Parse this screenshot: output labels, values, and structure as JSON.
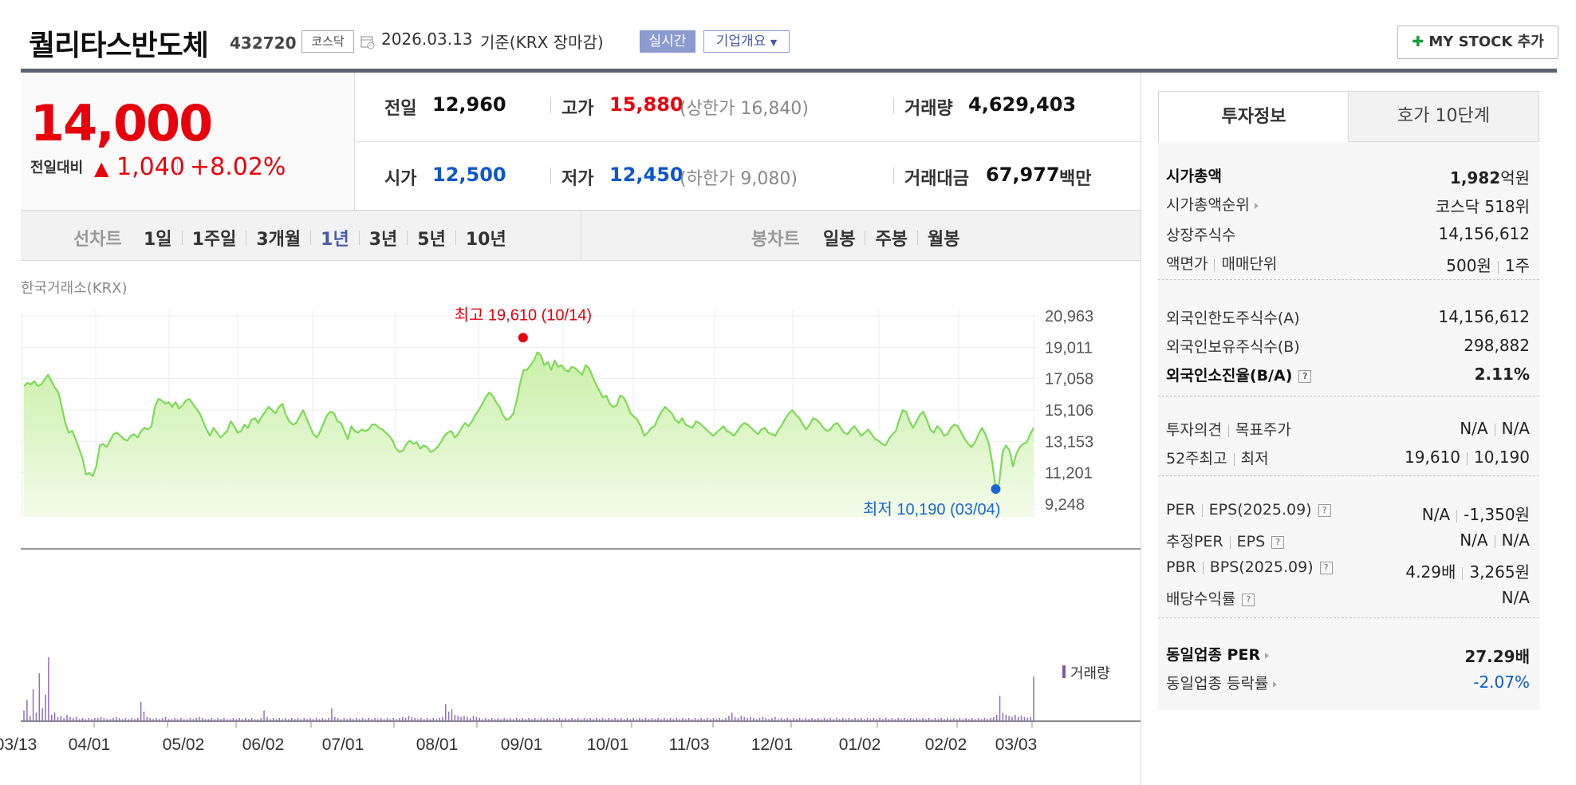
{
  "header": {
    "company_name": "퀄리타스반도체",
    "stock_code": "432720",
    "market": "코스닥",
    "date": "2026.03.13",
    "date_suffix": "기준(KRX 장마감)",
    "realtime_label": "실시간",
    "company_overview_label": "기업개요",
    "mystock_label": "MY STOCK 추가"
  },
  "price": {
    "current": "14,000",
    "change_label": "전일대비",
    "change_amount": "1,040",
    "change_rate": "+8.02%",
    "direction": "up"
  },
  "stats": {
    "prev_close_label": "전일",
    "prev_close": "12,960",
    "high_label": "고가",
    "high": "15,880",
    "upper_limit_label": "상한가",
    "upper_limit": "16,840",
    "volume_label": "거래량",
    "volume": "4,629,403",
    "open_label": "시가",
    "open": "12,500",
    "low_label": "저가",
    "low": "12,450",
    "lower_limit_label": "하한가",
    "lower_limit": "9,080",
    "trade_value_label": "거래대금",
    "trade_value": "67,977",
    "trade_value_unit": "백만"
  },
  "period_bar": {
    "line_chart_label": "선차트",
    "line_periods": [
      "1일",
      "1주일",
      "3개월",
      "1년",
      "3년",
      "5년",
      "10년"
    ],
    "active_period": "1년",
    "candle_chart_label": "봉차트",
    "candle_periods": [
      "일봉",
      "주봉",
      "월봉"
    ]
  },
  "chart": {
    "source": "한국거래소(KRX)",
    "high_annotation": "최고 19,610 (10/14)",
    "low_annotation": "최저 10,190 (03/04)",
    "volume_label": "거래량"
  },
  "chart_data": {
    "type": "area",
    "ytick_labels": [
      "20,963",
      "19,011",
      "17,058",
      "15,106",
      "13,153",
      "11,201",
      "9,248"
    ],
    "y_ticks": [
      20963,
      19011,
      17058,
      15106,
      13153,
      11201,
      9248
    ],
    "ylim": [
      9248,
      20963
    ],
    "xtick_labels": [
      "03/13",
      "04/01",
      "05/02",
      "06/02",
      "07/01",
      "08/01",
      "09/01",
      "10/01",
      "11/03",
      "12/01",
      "01/02",
      "02/02",
      "03/03"
    ],
    "series": [
      {
        "values": [
          16600,
          16800,
          16700,
          16900,
          16600,
          16700,
          17000,
          17300,
          16900,
          16500,
          16200,
          15300,
          14300,
          13700,
          13800,
          13300,
          12700,
          12100,
          11100,
          11200,
          11000,
          11600,
          12900,
          13000,
          12800,
          13200,
          13600,
          13700,
          13500,
          13300,
          13200,
          13500,
          13600,
          13400,
          13800,
          14000,
          13900,
          14100,
          15300,
          15800,
          15700,
          15500,
          15600,
          15300,
          15600,
          15200,
          15400,
          15700,
          15800,
          15500,
          15200,
          14900,
          14400,
          13900,
          13500,
          14000,
          13700,
          13400,
          13600,
          13800,
          14400,
          14100,
          13700,
          13800,
          14200,
          14000,
          14500,
          14600,
          14300,
          14700,
          15000,
          15300,
          15100,
          14900,
          15300,
          15500,
          14800,
          14400,
          14200,
          14300,
          14700,
          15100,
          14600,
          14100,
          13600,
          13400,
          13800,
          14300,
          14800,
          15000,
          14900,
          14400,
          14300,
          13800,
          13300,
          14100,
          13800,
          13700,
          13900,
          13800,
          13900,
          14200,
          14200,
          14000,
          13900,
          13700,
          13500,
          13200,
          12700,
          12500,
          12600,
          13000,
          13200,
          13000,
          13100,
          12700,
          12900,
          12800,
          12500,
          12600,
          12800,
          13100,
          13500,
          13700,
          13800,
          13400,
          13600,
          14000,
          14300,
          14100,
          14400,
          14800,
          15100,
          15500,
          15900,
          16200,
          16000,
          15600,
          15300,
          14800,
          14500,
          14600,
          14900,
          15700,
          16800,
          17600,
          17600,
          17900,
          18200,
          18700,
          18500,
          17900,
          18100,
          17600,
          18200,
          17800,
          17900,
          17600,
          17500,
          17800,
          17700,
          17500,
          17300,
          17900,
          17700,
          17200,
          16700,
          16300,
          15900,
          16000,
          15500,
          15300,
          15400,
          16000,
          15900,
          15500,
          14900,
          14700,
          14500,
          14100,
          13500,
          13700,
          14000,
          14100,
          14600,
          15000,
          15300,
          15100,
          14900,
          14500,
          14300,
          14600,
          14200,
          14100,
          14000,
          14400,
          14300,
          14100,
          13900,
          13700,
          13500,
          13700,
          13900,
          14100,
          13800,
          13700,
          13500,
          13800,
          14100,
          14300,
          14200,
          14000,
          13800,
          13600,
          13900,
          14000,
          13700,
          13600,
          13500,
          13900,
          14200,
          14600,
          14900,
          15100,
          14800,
          14600,
          14200,
          13900,
          14200,
          14600,
          14500,
          14300,
          14000,
          13800,
          13900,
          14200,
          14300,
          14000,
          13700,
          13600,
          13900,
          14100,
          13800,
          13500,
          13700,
          13900,
          13600,
          13300,
          13200,
          13000,
          12900,
          13300,
          13600,
          13800,
          14500,
          15100,
          15000,
          14400,
          14000,
          14400,
          14800,
          15000,
          14500,
          13900,
          13700,
          14100,
          13900,
          13500,
          13600,
          14000,
          14200,
          14100,
          13700,
          13300,
          13000,
          12800,
          13100,
          13600,
          14000,
          13600,
          13000,
          11800,
          10190,
          10600,
          12500,
          12900,
          12600,
          11600,
          12400,
          12800,
          13000,
          13100,
          13600,
          14000
        ]
      }
    ],
    "grid": true,
    "high": {
      "value": 19610,
      "date": "10/14"
    },
    "low": {
      "value": 10190,
      "date": "03/04"
    },
    "volume": [
      10,
      20,
      5,
      30,
      8,
      45,
      12,
      25,
      60,
      6,
      8,
      4,
      5,
      3,
      6,
      4,
      3,
      4,
      2,
      3,
      2,
      3,
      2,
      3,
      3,
      4,
      3,
      2,
      2,
      3,
      4,
      3,
      2,
      3,
      2,
      3,
      2,
      3,
      18,
      9,
      4,
      3,
      2,
      3,
      2,
      3,
      4,
      2,
      2,
      3,
      2,
      3,
      2,
      2,
      3,
      2,
      3,
      4,
      3,
      2,
      2,
      3,
      2,
      3,
      2,
      3,
      2,
      2,
      3,
      2,
      3,
      2,
      3,
      2,
      3,
      2,
      2,
      3,
      10,
      4,
      2,
      3,
      2,
      3,
      2,
      3,
      2,
      3,
      2,
      3,
      2,
      3,
      2,
      3,
      2,
      3,
      2,
      3,
      2,
      3,
      12,
      4,
      3,
      2,
      3,
      2,
      3,
      2,
      3,
      2,
      3,
      2,
      3,
      2,
      3,
      2,
      3,
      2,
      3,
      2,
      3,
      2,
      3,
      4,
      3,
      5,
      4,
      3,
      2,
      3,
      2,
      3,
      2,
      3,
      2,
      3,
      4,
      16,
      9,
      11,
      6,
      5,
      4,
      5,
      4,
      3,
      5,
      4,
      3,
      2,
      3,
      2,
      3,
      2,
      3,
      2,
      3,
      2,
      3,
      2,
      3,
      2,
      3,
      2,
      3,
      2,
      3,
      2,
      3,
      2,
      3,
      2,
      3,
      2,
      3,
      2,
      3,
      2,
      3,
      2,
      3,
      2,
      3,
      2,
      3,
      2,
      3,
      2,
      3,
      2,
      3,
      2,
      3,
      2,
      3,
      2,
      3,
      2,
      3,
      2,
      3,
      2,
      3,
      2,
      3,
      2,
      3,
      2,
      3,
      2,
      3,
      2,
      3,
      2,
      3,
      2,
      3,
      2,
      3,
      2,
      3,
      2,
      3,
      2,
      3,
      2,
      3,
      2,
      3,
      5,
      8,
      4,
      3,
      5,
      4,
      3,
      4,
      3,
      2,
      3,
      4,
      3,
      2,
      3,
      4,
      2,
      3,
      2,
      3,
      2,
      3,
      2,
      3,
      2,
      3,
      2,
      3,
      2,
      3,
      2,
      3,
      2,
      3,
      2,
      3,
      2,
      3,
      2,
      3,
      2,
      3,
      2,
      3,
      2,
      3,
      2,
      3,
      2,
      3,
      2,
      3,
      2,
      3,
      2,
      3,
      2,
      3,
      2,
      3,
      2,
      3,
      2,
      3,
      2,
      3,
      2,
      3,
      2,
      3,
      2,
      3,
      2,
      3,
      2,
      3,
      2,
      3,
      2,
      3,
      2,
      3,
      2,
      3,
      2,
      3,
      4,
      6,
      24,
      8,
      6,
      5,
      4,
      6,
      4,
      5,
      4,
      3,
      4,
      42
    ]
  },
  "right_panel": {
    "tabs": [
      "투자정보",
      "호가 10단계"
    ],
    "rows": [
      {
        "label": "시가총액",
        "value": "1,982",
        "unit": "억원",
        "bold": true
      },
      {
        "label": "시가총액순위",
        "value": "코스닥 518위",
        "arrow": true
      },
      {
        "label": "상장주식수",
        "value": "14,156,612"
      },
      {
        "label": "액면가",
        "label2": "매매단위",
        "value": "500원",
        "value2": "1주"
      },
      {
        "label": "외국인한도주식수(A)",
        "value": "14,156,612"
      },
      {
        "label": "외국인보유주식수(B)",
        "value": "298,882"
      },
      {
        "label": "외국인소진율(B/A)",
        "value": "2.11%",
        "bold": true,
        "help": true
      },
      {
        "label": "투자의견",
        "label2": "목표주가",
        "value": "N/A",
        "value2": "N/A"
      },
      {
        "label": "52주최고",
        "label2": "최저",
        "value": "19,610",
        "value2": "10,190"
      },
      {
        "label": "PER",
        "label2": "EPS(2025.09)",
        "value": "N/A",
        "value2": "-1,350원",
        "help": true
      },
      {
        "label": "추정PER",
        "label2": "EPS",
        "value": "N/A",
        "value2": "N/A",
        "help": true
      },
      {
        "label": "PBR",
        "label2": "BPS(2025.09)",
        "value": "4.29배",
        "value2": "3,265원",
        "help": true
      },
      {
        "label": "배당수익률",
        "value": "N/A",
        "help": true
      },
      {
        "label": "동일업종 PER",
        "value": "27.29배",
        "bold": true,
        "arrow": true
      },
      {
        "label": "동일업종 등락률",
        "value": "-2.07%",
        "arrow": true,
        "color": "#0f57c9"
      }
    ]
  },
  "colors": {
    "up": "#e8000c",
    "down": "#0f57c9",
    "line": "#7ed957",
    "volume": "#8d6ec0"
  }
}
